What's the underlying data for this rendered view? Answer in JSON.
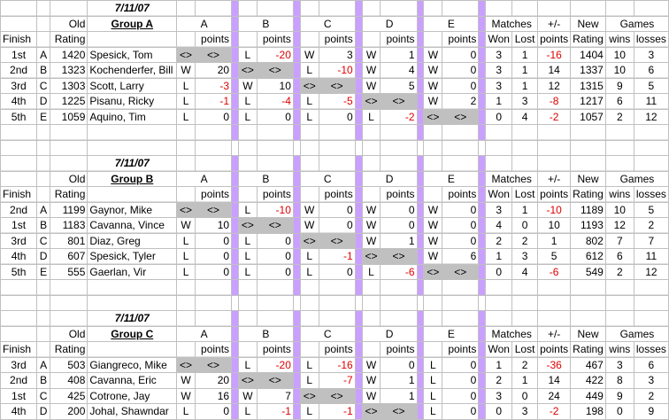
{
  "groups": [
    {
      "date": "7/11/07",
      "name": "Group A",
      "headers": {
        "old": "Old",
        "rating": "Rating",
        "finish": "Finish",
        "a": "A",
        "b": "B",
        "c": "C",
        "d": "D",
        "e": "E",
        "points": "points",
        "matches": "Matches",
        "won": "Won",
        "lost": "Lost",
        "pm": "+/-",
        "pm_points": "points",
        "new": "New",
        "new_rating": "Rating",
        "games": "Games",
        "wins": "wins",
        "losses": "losses"
      },
      "rows": [
        {
          "finish": "1st",
          "seed": "A",
          "old": "1420",
          "player": "Spesick, Tom",
          "cols": [
            [
              "<>",
              "<>"
            ],
            [
              "L",
              "-20"
            ],
            [
              "W",
              "3"
            ],
            [
              "W",
              "1"
            ],
            [
              "W",
              "0"
            ]
          ],
          "won": "3",
          "lost": "1",
          "pm": "-16",
          "new": "1404",
          "wins": "10",
          "losses": "3"
        },
        {
          "finish": "2nd",
          "seed": "B",
          "old": "1323",
          "player": "Kochenderfer, Bill",
          "cols": [
            [
              "W",
              "20"
            ],
            [
              "<>",
              "<>"
            ],
            [
              "L",
              "-10"
            ],
            [
              "W",
              "4"
            ],
            [
              "W",
              "0"
            ]
          ],
          "won": "3",
          "lost": "1",
          "pm": "14",
          "new": "1337",
          "wins": "10",
          "losses": "6"
        },
        {
          "finish": "3rd",
          "seed": "C",
          "old": "1303",
          "player": "Scott, Larry",
          "cols": [
            [
              "L",
              "-3"
            ],
            [
              "W",
              "10"
            ],
            [
              "<>",
              "<>"
            ],
            [
              "W",
              "5"
            ],
            [
              "W",
              "0"
            ]
          ],
          "won": "3",
          "lost": "1",
          "pm": "12",
          "new": "1315",
          "wins": "9",
          "losses": "5"
        },
        {
          "finish": "4th",
          "seed": "D",
          "old": "1225",
          "player": "Pisanu, Ricky",
          "cols": [
            [
              "L",
              "-1"
            ],
            [
              "L",
              "-4"
            ],
            [
              "L",
              "-5"
            ],
            [
              "<>",
              "<>"
            ],
            [
              "W",
              "2"
            ]
          ],
          "won": "1",
          "lost": "3",
          "pm": "-8",
          "new": "1217",
          "wins": "6",
          "losses": "11"
        },
        {
          "finish": "5th",
          "seed": "E",
          "old": "1059",
          "player": "Aquino, Tim",
          "cols": [
            [
              "L",
              "0"
            ],
            [
              "L",
              "0"
            ],
            [
              "L",
              "0"
            ],
            [
              "L",
              "-2"
            ],
            [
              "<>",
              "<>"
            ]
          ],
          "won": "0",
          "lost": "4",
          "pm": "-2",
          "new": "1057",
          "wins": "2",
          "losses": "12"
        }
      ]
    },
    {
      "date": "7/11/07",
      "name": "Group B",
      "headers": {
        "old": "Old",
        "rating": "Rating",
        "finish": "Finish",
        "a": "A",
        "b": "B",
        "c": "C",
        "d": "D",
        "e": "E",
        "points": "points",
        "matches": "Matches",
        "won": "Won",
        "lost": "Lost",
        "pm": "+/-",
        "pm_points": "points",
        "new": "New",
        "new_rating": "Rating",
        "games": "Games",
        "wins": "wins",
        "losses": "losses"
      },
      "rows": [
        {
          "finish": "2nd",
          "seed": "A",
          "old": "1199",
          "player": "Gaynor, Mike",
          "cols": [
            [
              "<>",
              "<>"
            ],
            [
              "L",
              "-10"
            ],
            [
              "W",
              "0"
            ],
            [
              "W",
              "0"
            ],
            [
              "W",
              "0"
            ]
          ],
          "won": "3",
          "lost": "1",
          "pm": "-10",
          "new": "1189",
          "wins": "10",
          "losses": "5"
        },
        {
          "finish": "1st",
          "seed": "B",
          "old": "1183",
          "player": "Cavanna, Vince",
          "cols": [
            [
              "W",
              "10"
            ],
            [
              "<>",
              "<>"
            ],
            [
              "W",
              "0"
            ],
            [
              "W",
              "0"
            ],
            [
              "W",
              "0"
            ]
          ],
          "won": "4",
          "lost": "0",
          "pm": "10",
          "new": "1193",
          "wins": "12",
          "losses": "2"
        },
        {
          "finish": "3rd",
          "seed": "C",
          "old": "801",
          "player": "Diaz, Greg",
          "cols": [
            [
              "L",
              "0"
            ],
            [
              "L",
              "0"
            ],
            [
              "<>",
              "<>"
            ],
            [
              "W",
              "1"
            ],
            [
              "W",
              "0"
            ]
          ],
          "won": "2",
          "lost": "2",
          "pm": "1",
          "new": "802",
          "wins": "7",
          "losses": "7"
        },
        {
          "finish": "4th",
          "seed": "D",
          "old": "607",
          "player": "Spesick, Tyler",
          "cols": [
            [
              "L",
              "0"
            ],
            [
              "L",
              "0"
            ],
            [
              "L",
              "-1"
            ],
            [
              "<>",
              "<>"
            ],
            [
              "W",
              "6"
            ]
          ],
          "won": "1",
          "lost": "3",
          "pm": "5",
          "new": "612",
          "wins": "6",
          "losses": "11"
        },
        {
          "finish": "5th",
          "seed": "E",
          "old": "555",
          "player": "Gaerlan, Vir",
          "cols": [
            [
              "L",
              "0"
            ],
            [
              "L",
              "0"
            ],
            [
              "L",
              "0"
            ],
            [
              "L",
              "-6"
            ],
            [
              "<>",
              "<>"
            ]
          ],
          "won": "0",
          "lost": "4",
          "pm": "-6",
          "new": "549",
          "wins": "2",
          "losses": "12"
        }
      ]
    },
    {
      "date": "7/11/07",
      "name": "Group C",
      "headers": {
        "old": "Old",
        "rating": "Rating",
        "finish": "Finish",
        "a": "A",
        "b": "B",
        "c": "C",
        "d": "D",
        "e": "E",
        "points": "points",
        "matches": "Matches",
        "won": "Won",
        "lost": "Lost",
        "pm": "+/-",
        "pm_points": "points",
        "new": "New",
        "new_rating": "Rating",
        "games": "Games",
        "wins": "wins",
        "losses": "losses"
      },
      "rows": [
        {
          "finish": "3rd",
          "seed": "A",
          "old": "503",
          "player": "Giangreco, Mike",
          "cols": [
            [
              "<>",
              "<>"
            ],
            [
              "L",
              "-20"
            ],
            [
              "L",
              "-16"
            ],
            [
              "W",
              "0"
            ],
            [
              "L",
              "0"
            ]
          ],
          "won": "1",
          "lost": "2",
          "pm": "-36",
          "new": "467",
          "wins": "3",
          "losses": "6"
        },
        {
          "finish": "2nd",
          "seed": "B",
          "old": "408",
          "player": "Cavanna, Eric",
          "cols": [
            [
              "W",
              "20"
            ],
            [
              "<>",
              "<>"
            ],
            [
              "L",
              "-7"
            ],
            [
              "W",
              "1"
            ],
            [
              "L",
              "0"
            ]
          ],
          "won": "2",
          "lost": "1",
          "pm": "14",
          "new": "422",
          "wins": "8",
          "losses": "3"
        },
        {
          "finish": "1st",
          "seed": "C",
          "old": "425",
          "player": "Cotrone, Jay",
          "cols": [
            [
              "W",
              "16"
            ],
            [
              "W",
              "7"
            ],
            [
              "<>",
              "<>"
            ],
            [
              "W",
              "1"
            ],
            [
              "L",
              "0"
            ]
          ],
          "won": "3",
          "lost": "0",
          "pm": "24",
          "new": "449",
          "wins": "9",
          "losses": "2"
        },
        {
          "finish": "4th",
          "seed": "D",
          "old": "200",
          "player": "Johal, Shawndar",
          "cols": [
            [
              "L",
              "0"
            ],
            [
              "L",
              "-1"
            ],
            [
              "L",
              "-1"
            ],
            [
              "<>",
              "<>"
            ],
            [
              "L",
              "0"
            ]
          ],
          "won": "0",
          "lost": "3",
          "pm": "-2",
          "new": "198",
          "wins": "0",
          "losses": "9"
        }
      ]
    }
  ]
}
